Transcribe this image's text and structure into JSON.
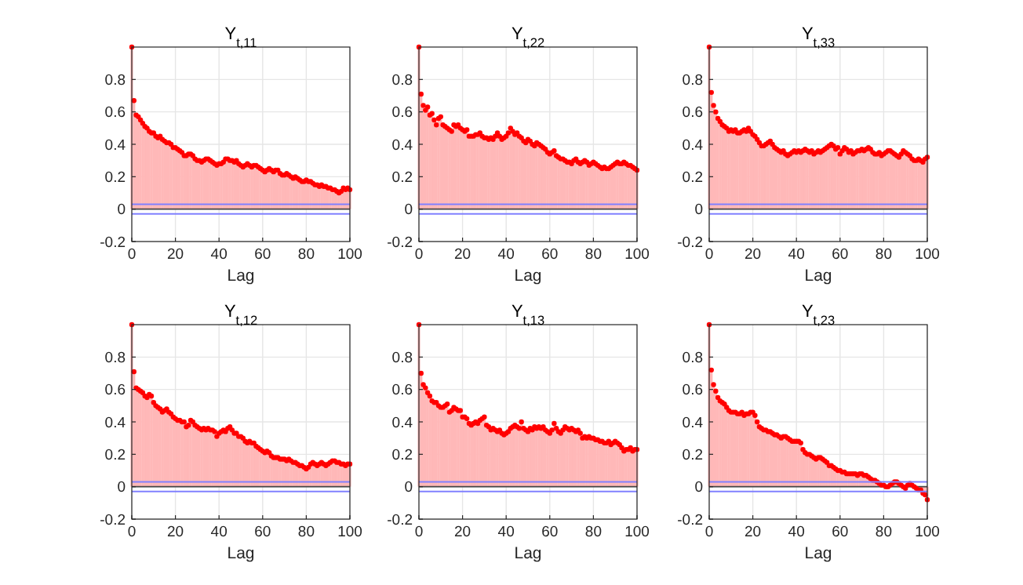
{
  "chart_data": [
    {
      "type": "lollipop",
      "title": "Y$_{t,11}$",
      "xlabel": "Lag",
      "xlim": [
        0,
        100
      ],
      "xticks": [
        0,
        20,
        40,
        60,
        80,
        100
      ],
      "ylim": [
        -0.2,
        1
      ],
      "yticks": [
        -0.2,
        0,
        0.2,
        0.4,
        0.6,
        0.8
      ],
      "grid": true,
      "marker": "circle",
      "x": [
        0,
        1,
        2,
        3,
        4,
        5,
        6,
        7,
        8,
        9,
        10,
        11,
        12,
        13,
        14,
        15,
        16,
        17,
        18,
        19,
        20,
        21,
        22,
        23,
        24,
        25,
        26,
        27,
        28,
        29,
        30,
        31,
        32,
        33,
        34,
        35,
        36,
        37,
        38,
        39,
        40,
        41,
        42,
        43,
        44,
        45,
        46,
        47,
        48,
        49,
        50,
        51,
        52,
        53,
        54,
        55,
        56,
        57,
        58,
        59,
        60,
        61,
        62,
        63,
        64,
        65,
        66,
        67,
        68,
        69,
        70,
        71,
        72,
        73,
        74,
        75,
        76,
        77,
        78,
        79,
        80,
        81,
        82,
        83,
        84,
        85,
        86,
        87,
        88,
        89,
        90,
        91,
        92,
        93,
        94,
        95,
        96,
        97,
        98,
        99,
        100
      ],
      "series": [
        {
          "color": "#ff0000",
          "values": [
            1.0,
            0.67,
            0.58,
            0.57,
            0.55,
            0.53,
            0.51,
            0.5,
            0.48,
            0.47,
            0.47,
            0.45,
            0.44,
            0.45,
            0.43,
            0.42,
            0.41,
            0.41,
            0.4,
            0.38,
            0.38,
            0.37,
            0.36,
            0.35,
            0.33,
            0.33,
            0.34,
            0.34,
            0.33,
            0.31,
            0.3,
            0.3,
            0.29,
            0.3,
            0.31,
            0.31,
            0.3,
            0.29,
            0.28,
            0.27,
            0.28,
            0.28,
            0.29,
            0.31,
            0.31,
            0.3,
            0.3,
            0.29,
            0.3,
            0.28,
            0.27,
            0.26,
            0.27,
            0.28,
            0.27,
            0.26,
            0.27,
            0.27,
            0.26,
            0.25,
            0.24,
            0.23,
            0.24,
            0.25,
            0.24,
            0.23,
            0.24,
            0.24,
            0.22,
            0.21,
            0.21,
            0.22,
            0.21,
            0.2,
            0.19,
            0.2,
            0.19,
            0.18,
            0.17,
            0.17,
            0.18,
            0.17,
            0.17,
            0.16,
            0.15,
            0.15,
            0.14,
            0.15,
            0.14,
            0.14,
            0.13,
            0.13,
            0.12,
            0.12,
            0.11,
            0.1,
            0.11,
            0.13,
            0.12,
            0.13,
            0.12
          ]
        }
      ],
      "ref_lines": [
        {
          "axis": "y",
          "value": 0.03,
          "color": "#8080ff"
        },
        {
          "axis": "y",
          "value": -0.03,
          "color": "#8080ff"
        }
      ]
    },
    {
      "type": "lollipop",
      "title": "Y$_{t,22}$",
      "xlabel": "Lag",
      "xlim": [
        0,
        100
      ],
      "xticks": [
        0,
        20,
        40,
        60,
        80,
        100
      ],
      "ylim": [
        -0.2,
        1
      ],
      "yticks": [
        -0.2,
        0,
        0.2,
        0.4,
        0.6,
        0.8
      ],
      "grid": true,
      "marker": "circle",
      "x": [
        0,
        1,
        2,
        3,
        4,
        5,
        6,
        7,
        8,
        9,
        10,
        11,
        12,
        13,
        14,
        15,
        16,
        17,
        18,
        19,
        20,
        21,
        22,
        23,
        24,
        25,
        26,
        27,
        28,
        29,
        30,
        31,
        32,
        33,
        34,
        35,
        36,
        37,
        38,
        39,
        40,
        41,
        42,
        43,
        44,
        45,
        46,
        47,
        48,
        49,
        50,
        51,
        52,
        53,
        54,
        55,
        56,
        57,
        58,
        59,
        60,
        61,
        62,
        63,
        64,
        65,
        66,
        67,
        68,
        69,
        70,
        71,
        72,
        73,
        74,
        75,
        76,
        77,
        78,
        79,
        80,
        81,
        82,
        83,
        84,
        85,
        86,
        87,
        88,
        89,
        90,
        91,
        92,
        93,
        94,
        95,
        96,
        97,
        98,
        99,
        100
      ],
      "series": [
        {
          "color": "#ff0000",
          "values": [
            1.0,
            0.71,
            0.64,
            0.61,
            0.63,
            0.58,
            0.59,
            0.55,
            0.52,
            0.56,
            0.57,
            0.52,
            0.51,
            0.5,
            0.49,
            0.48,
            0.52,
            0.51,
            0.52,
            0.5,
            0.49,
            0.48,
            0.49,
            0.45,
            0.45,
            0.45,
            0.46,
            0.46,
            0.47,
            0.45,
            0.44,
            0.44,
            0.43,
            0.44,
            0.43,
            0.45,
            0.47,
            0.45,
            0.43,
            0.44,
            0.45,
            0.47,
            0.5,
            0.48,
            0.46,
            0.47,
            0.45,
            0.44,
            0.42,
            0.41,
            0.43,
            0.42,
            0.4,
            0.39,
            0.41,
            0.4,
            0.39,
            0.38,
            0.37,
            0.35,
            0.34,
            0.35,
            0.36,
            0.33,
            0.32,
            0.31,
            0.31,
            0.3,
            0.29,
            0.29,
            0.28,
            0.3,
            0.31,
            0.29,
            0.28,
            0.29,
            0.3,
            0.29,
            0.27,
            0.28,
            0.29,
            0.28,
            0.27,
            0.26,
            0.25,
            0.26,
            0.25,
            0.25,
            0.26,
            0.27,
            0.28,
            0.29,
            0.28,
            0.28,
            0.29,
            0.28,
            0.27,
            0.27,
            0.26,
            0.25,
            0.24
          ]
        }
      ],
      "ref_lines": [
        {
          "axis": "y",
          "value": 0.03,
          "color": "#8080ff"
        },
        {
          "axis": "y",
          "value": -0.03,
          "color": "#8080ff"
        }
      ]
    },
    {
      "type": "lollipop",
      "title": "Y$_{t,33}$",
      "xlabel": "Lag",
      "xlim": [
        0,
        100
      ],
      "xticks": [
        0,
        20,
        40,
        60,
        80,
        100
      ],
      "ylim": [
        -0.2,
        1
      ],
      "yticks": [
        -0.2,
        0,
        0.2,
        0.4,
        0.6,
        0.8
      ],
      "grid": true,
      "marker": "circle",
      "x": [
        0,
        1,
        2,
        3,
        4,
        5,
        6,
        7,
        8,
        9,
        10,
        11,
        12,
        13,
        14,
        15,
        16,
        17,
        18,
        19,
        20,
        21,
        22,
        23,
        24,
        25,
        26,
        27,
        28,
        29,
        30,
        31,
        32,
        33,
        34,
        35,
        36,
        37,
        38,
        39,
        40,
        41,
        42,
        43,
        44,
        45,
        46,
        47,
        48,
        49,
        50,
        51,
        52,
        53,
        54,
        55,
        56,
        57,
        58,
        59,
        60,
        61,
        62,
        63,
        64,
        65,
        66,
        67,
        68,
        69,
        70,
        71,
        72,
        73,
        74,
        75,
        76,
        77,
        78,
        79,
        80,
        81,
        82,
        83,
        84,
        85,
        86,
        87,
        88,
        89,
        90,
        91,
        92,
        93,
        94,
        95,
        96,
        97,
        98,
        99,
        100
      ],
      "series": [
        {
          "color": "#ff0000",
          "values": [
            1.0,
            0.72,
            0.64,
            0.6,
            0.56,
            0.54,
            0.52,
            0.51,
            0.5,
            0.48,
            0.49,
            0.48,
            0.49,
            0.47,
            0.47,
            0.48,
            0.49,
            0.48,
            0.5,
            0.48,
            0.46,
            0.45,
            0.43,
            0.41,
            0.39,
            0.39,
            0.4,
            0.41,
            0.42,
            0.4,
            0.38,
            0.37,
            0.36,
            0.35,
            0.36,
            0.34,
            0.33,
            0.34,
            0.35,
            0.36,
            0.35,
            0.36,
            0.35,
            0.36,
            0.37,
            0.36,
            0.35,
            0.36,
            0.34,
            0.35,
            0.36,
            0.35,
            0.36,
            0.37,
            0.38,
            0.39,
            0.4,
            0.39,
            0.37,
            0.38,
            0.34,
            0.36,
            0.38,
            0.37,
            0.35,
            0.36,
            0.34,
            0.35,
            0.36,
            0.36,
            0.37,
            0.36,
            0.37,
            0.38,
            0.37,
            0.35,
            0.34,
            0.34,
            0.35,
            0.33,
            0.34,
            0.35,
            0.36,
            0.36,
            0.35,
            0.34,
            0.33,
            0.32,
            0.34,
            0.36,
            0.35,
            0.34,
            0.33,
            0.31,
            0.3,
            0.3,
            0.31,
            0.3,
            0.29,
            0.31,
            0.32
          ]
        }
      ],
      "ref_lines": [
        {
          "axis": "y",
          "value": 0.03,
          "color": "#8080ff"
        },
        {
          "axis": "y",
          "value": -0.03,
          "color": "#8080ff"
        }
      ]
    },
    {
      "type": "lollipop",
      "title": "Y$_{t,12}$",
      "xlabel": "Lag",
      "xlim": [
        0,
        100
      ],
      "xticks": [
        0,
        20,
        40,
        60,
        80,
        100
      ],
      "ylim": [
        -0.2,
        1
      ],
      "yticks": [
        -0.2,
        0,
        0.2,
        0.4,
        0.6,
        0.8
      ],
      "grid": true,
      "marker": "circle",
      "x": [
        0,
        1,
        2,
        3,
        4,
        5,
        6,
        7,
        8,
        9,
        10,
        11,
        12,
        13,
        14,
        15,
        16,
        17,
        18,
        19,
        20,
        21,
        22,
        23,
        24,
        25,
        26,
        27,
        28,
        29,
        30,
        31,
        32,
        33,
        34,
        35,
        36,
        37,
        38,
        39,
        40,
        41,
        42,
        43,
        44,
        45,
        46,
        47,
        48,
        49,
        50,
        51,
        52,
        53,
        54,
        55,
        56,
        57,
        58,
        59,
        60,
        61,
        62,
        63,
        64,
        65,
        66,
        67,
        68,
        69,
        70,
        71,
        72,
        73,
        74,
        75,
        76,
        77,
        78,
        79,
        80,
        81,
        82,
        83,
        84,
        85,
        86,
        87,
        88,
        89,
        90,
        91,
        92,
        93,
        94,
        95,
        96,
        97,
        98,
        99,
        100
      ],
      "series": [
        {
          "color": "#ff0000",
          "values": [
            1.0,
            0.71,
            0.61,
            0.6,
            0.59,
            0.58,
            0.56,
            0.55,
            0.57,
            0.56,
            0.52,
            0.5,
            0.49,
            0.48,
            0.46,
            0.47,
            0.48,
            0.46,
            0.45,
            0.43,
            0.42,
            0.41,
            0.41,
            0.4,
            0.4,
            0.37,
            0.38,
            0.41,
            0.4,
            0.38,
            0.37,
            0.36,
            0.35,
            0.36,
            0.35,
            0.36,
            0.35,
            0.35,
            0.34,
            0.31,
            0.33,
            0.34,
            0.35,
            0.34,
            0.36,
            0.37,
            0.35,
            0.33,
            0.33,
            0.31,
            0.31,
            0.3,
            0.28,
            0.27,
            0.28,
            0.27,
            0.27,
            0.25,
            0.24,
            0.23,
            0.22,
            0.21,
            0.22,
            0.21,
            0.19,
            0.18,
            0.18,
            0.18,
            0.17,
            0.17,
            0.17,
            0.16,
            0.17,
            0.16,
            0.15,
            0.15,
            0.14,
            0.13,
            0.13,
            0.12,
            0.11,
            0.12,
            0.14,
            0.15,
            0.14,
            0.13,
            0.14,
            0.15,
            0.14,
            0.13,
            0.14,
            0.15,
            0.16,
            0.16,
            0.15,
            0.15,
            0.14,
            0.14,
            0.13,
            0.14,
            0.14
          ]
        }
      ],
      "ref_lines": [
        {
          "axis": "y",
          "value": 0.03,
          "color": "#8080ff"
        },
        {
          "axis": "y",
          "value": -0.03,
          "color": "#8080ff"
        }
      ]
    },
    {
      "type": "lollipop",
      "title": "Y$_{t,13}$",
      "xlabel": "Lag",
      "xlim": [
        0,
        100
      ],
      "xticks": [
        0,
        20,
        40,
        60,
        80,
        100
      ],
      "ylim": [
        -0.2,
        1
      ],
      "yticks": [
        -0.2,
        0,
        0.2,
        0.4,
        0.6,
        0.8
      ],
      "grid": true,
      "marker": "circle",
      "x": [
        0,
        1,
        2,
        3,
        4,
        5,
        6,
        7,
        8,
        9,
        10,
        11,
        12,
        13,
        14,
        15,
        16,
        17,
        18,
        19,
        20,
        21,
        22,
        23,
        24,
        25,
        26,
        27,
        28,
        29,
        30,
        31,
        32,
        33,
        34,
        35,
        36,
        37,
        38,
        39,
        40,
        41,
        42,
        43,
        44,
        45,
        46,
        47,
        48,
        49,
        50,
        51,
        52,
        53,
        54,
        55,
        56,
        57,
        58,
        59,
        60,
        61,
        62,
        63,
        64,
        65,
        66,
        67,
        68,
        69,
        70,
        71,
        72,
        73,
        74,
        75,
        76,
        77,
        78,
        79,
        80,
        81,
        82,
        83,
        84,
        85,
        86,
        87,
        88,
        89,
        90,
        91,
        92,
        93,
        94,
        95,
        96,
        97,
        98,
        99,
        100
      ],
      "series": [
        {
          "color": "#ff0000",
          "values": [
            1.0,
            0.7,
            0.63,
            0.61,
            0.58,
            0.56,
            0.53,
            0.52,
            0.52,
            0.5,
            0.49,
            0.49,
            0.5,
            0.51,
            0.46,
            0.47,
            0.49,
            0.48,
            0.47,
            0.47,
            0.43,
            0.43,
            0.42,
            0.39,
            0.38,
            0.39,
            0.4,
            0.39,
            0.41,
            0.42,
            0.43,
            0.38,
            0.37,
            0.35,
            0.36,
            0.35,
            0.34,
            0.35,
            0.33,
            0.32,
            0.33,
            0.34,
            0.36,
            0.37,
            0.38,
            0.37,
            0.36,
            0.4,
            0.36,
            0.35,
            0.34,
            0.36,
            0.35,
            0.37,
            0.36,
            0.37,
            0.36,
            0.37,
            0.35,
            0.34,
            0.33,
            0.35,
            0.39,
            0.36,
            0.34,
            0.33,
            0.35,
            0.37,
            0.36,
            0.35,
            0.36,
            0.35,
            0.34,
            0.35,
            0.33,
            0.3,
            0.31,
            0.3,
            0.31,
            0.3,
            0.3,
            0.29,
            0.29,
            0.28,
            0.28,
            0.27,
            0.27,
            0.28,
            0.26,
            0.27,
            0.28,
            0.27,
            0.26,
            0.24,
            0.22,
            0.23,
            0.23,
            0.24,
            0.22,
            0.23,
            0.23
          ]
        }
      ],
      "ref_lines": [
        {
          "axis": "y",
          "value": 0.03,
          "color": "#8080ff"
        },
        {
          "axis": "y",
          "value": -0.03,
          "color": "#8080ff"
        }
      ]
    },
    {
      "type": "lollipop",
      "title": "Y$_{t,23}$",
      "xlabel": "Lag",
      "xlim": [
        0,
        100
      ],
      "xticks": [
        0,
        20,
        40,
        60,
        80,
        100
      ],
      "ylim": [
        -0.2,
        1
      ],
      "yticks": [
        -0.2,
        0,
        0.2,
        0.4,
        0.6,
        0.8
      ],
      "grid": true,
      "marker": "circle",
      "x": [
        0,
        1,
        2,
        3,
        4,
        5,
        6,
        7,
        8,
        9,
        10,
        11,
        12,
        13,
        14,
        15,
        16,
        17,
        18,
        19,
        20,
        21,
        22,
        23,
        24,
        25,
        26,
        27,
        28,
        29,
        30,
        31,
        32,
        33,
        34,
        35,
        36,
        37,
        38,
        39,
        40,
        41,
        42,
        43,
        44,
        45,
        46,
        47,
        48,
        49,
        50,
        51,
        52,
        53,
        54,
        55,
        56,
        57,
        58,
        59,
        60,
        61,
        62,
        63,
        64,
        65,
        66,
        67,
        68,
        69,
        70,
        71,
        72,
        73,
        74,
        75,
        76,
        77,
        78,
        79,
        80,
        81,
        82,
        83,
        84,
        85,
        86,
        87,
        88,
        89,
        90,
        91,
        92,
        93,
        94,
        95,
        96,
        97,
        98,
        99,
        100
      ],
      "series": [
        {
          "color": "#ff0000",
          "values": [
            1.0,
            0.72,
            0.63,
            0.59,
            0.55,
            0.53,
            0.52,
            0.51,
            0.49,
            0.47,
            0.46,
            0.46,
            0.46,
            0.45,
            0.45,
            0.46,
            0.44,
            0.45,
            0.45,
            0.46,
            0.46,
            0.44,
            0.4,
            0.37,
            0.36,
            0.35,
            0.35,
            0.34,
            0.34,
            0.33,
            0.32,
            0.32,
            0.31,
            0.3,
            0.31,
            0.31,
            0.3,
            0.29,
            0.28,
            0.28,
            0.28,
            0.28,
            0.27,
            0.23,
            0.21,
            0.2,
            0.2,
            0.19,
            0.18,
            0.17,
            0.18,
            0.18,
            0.17,
            0.16,
            0.15,
            0.13,
            0.13,
            0.12,
            0.11,
            0.1,
            0.1,
            0.09,
            0.09,
            0.08,
            0.08,
            0.08,
            0.08,
            0.08,
            0.07,
            0.08,
            0.08,
            0.07,
            0.07,
            0.06,
            0.05,
            0.04,
            0.04,
            0.03,
            0.02,
            0.01,
            0.01,
            0.0,
            0.0,
            0.01,
            0.02,
            0.03,
            0.03,
            0.02,
            0.01,
            0.0,
            -0.01,
            0.01,
            0.02,
            0.01,
            0.0,
            -0.01,
            -0.02,
            -0.02,
            -0.04,
            -0.05,
            -0.08
          ]
        }
      ],
      "ref_lines": [
        {
          "axis": "y",
          "value": 0.03,
          "color": "#8080ff"
        },
        {
          "axis": "y",
          "value": -0.03,
          "color": "#8080ff"
        }
      ]
    }
  ]
}
